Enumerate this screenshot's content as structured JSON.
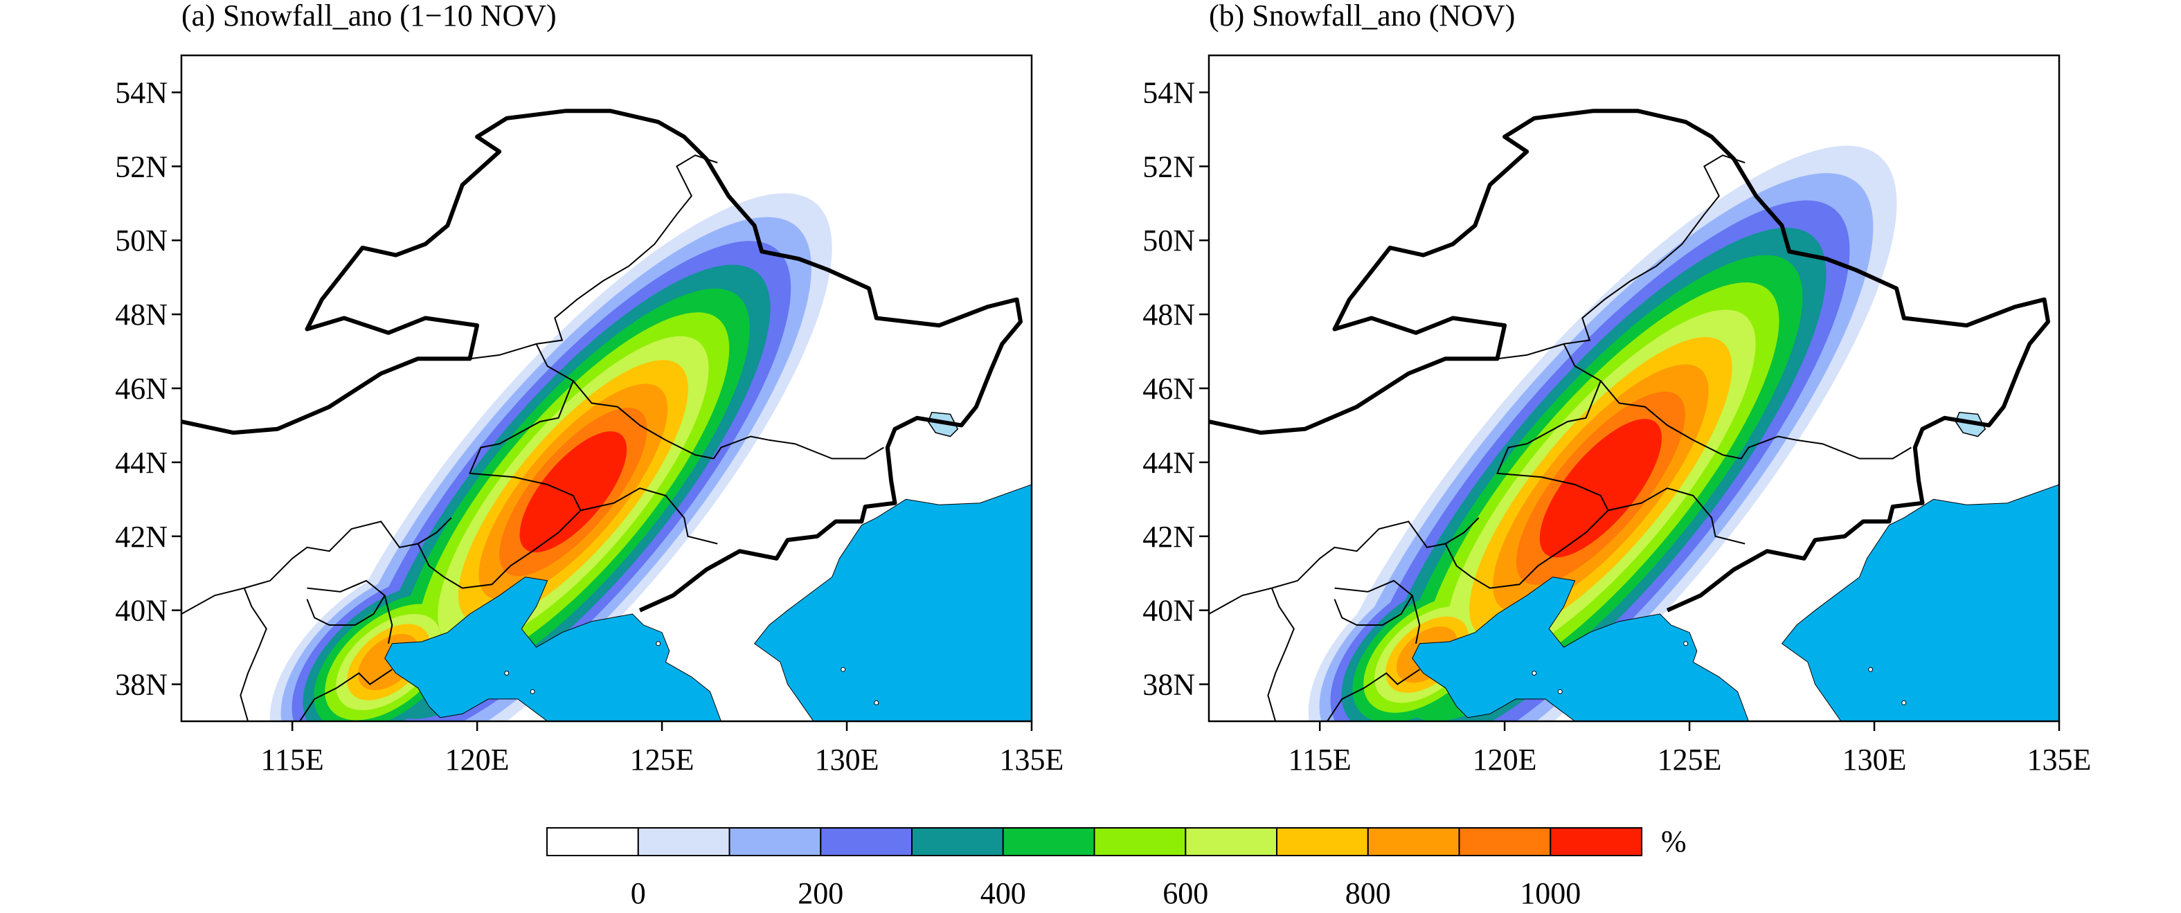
{
  "panels": [
    {
      "id": "a",
      "title": "(a) Snowfall_ano (1−10 NOV)",
      "lon_range": [
        112,
        135
      ],
      "lat_range": [
        37,
        55
      ],
      "lon_ticks": [
        {
          "value": 115,
          "label": "115E"
        },
        {
          "value": 120,
          "label": "120E"
        },
        {
          "value": 125,
          "label": "125E"
        },
        {
          "value": 130,
          "label": "130E"
        },
        {
          "value": 135,
          "label": "135E"
        }
      ],
      "lat_ticks": [
        {
          "value": 38,
          "label": "38N"
        },
        {
          "value": 40,
          "label": "40N"
        },
        {
          "value": 42,
          "label": "42N"
        },
        {
          "value": 44,
          "label": "44N"
        },
        {
          "value": 46,
          "label": "46N"
        },
        {
          "value": 48,
          "label": "48N"
        },
        {
          "value": 50,
          "label": "50N"
        },
        {
          "value": 52,
          "label": "52N"
        },
        {
          "value": 54,
          "label": "54N"
        }
      ],
      "anomaly_center": {
        "lon": 122.6,
        "lat": 43.2,
        "peak_percent": 1100
      },
      "secondary_center": {
        "lon": 117.6,
        "lat": 38.6,
        "peak_percent": 900
      }
    },
    {
      "id": "b",
      "title": "(b) Snowfall_ano (NOV)",
      "lon_range": [
        112,
        135
      ],
      "lat_range": [
        37,
        55
      ],
      "lon_ticks": [
        {
          "value": 115,
          "label": "115E"
        },
        {
          "value": 120,
          "label": "120E"
        },
        {
          "value": 125,
          "label": "125E"
        },
        {
          "value": 130,
          "label": "130E"
        },
        {
          "value": 135,
          "label": "135E"
        }
      ],
      "lat_ticks": [
        {
          "value": 38,
          "label": "38N"
        },
        {
          "value": 40,
          "label": "40N"
        },
        {
          "value": 42,
          "label": "42N"
        },
        {
          "value": 44,
          "label": "44N"
        },
        {
          "value": 46,
          "label": "46N"
        },
        {
          "value": 48,
          "label": "48N"
        },
        {
          "value": 50,
          "label": "50N"
        },
        {
          "value": 52,
          "label": "52N"
        },
        {
          "value": 54,
          "label": "54N"
        }
      ],
      "anomaly_center": {
        "lon": 122.6,
        "lat": 43.3,
        "peak_percent": 1100
      },
      "secondary_center": {
        "lon": 117.9,
        "lat": 38.8,
        "peak_percent": 800
      }
    }
  ],
  "colorbar": {
    "unit": "%",
    "levels": [
      0,
      100,
      200,
      300,
      400,
      500,
      600,
      700,
      800,
      900,
      1000,
      1100
    ],
    "labels": [
      "0",
      "200",
      "400",
      "600",
      "800",
      "1000"
    ],
    "colors": [
      "#ffffff",
      "#d6e1fa",
      "#97b4fb",
      "#6675f2",
      "#0f9393",
      "#08c23a",
      "#8fee05",
      "#c6f54c",
      "#ffc502",
      "#ff9c03",
      "#ff7a08",
      "#fe1f00"
    ]
  },
  "sea_color": "#01b0eb",
  "lake_color": "#aadcf2"
}
